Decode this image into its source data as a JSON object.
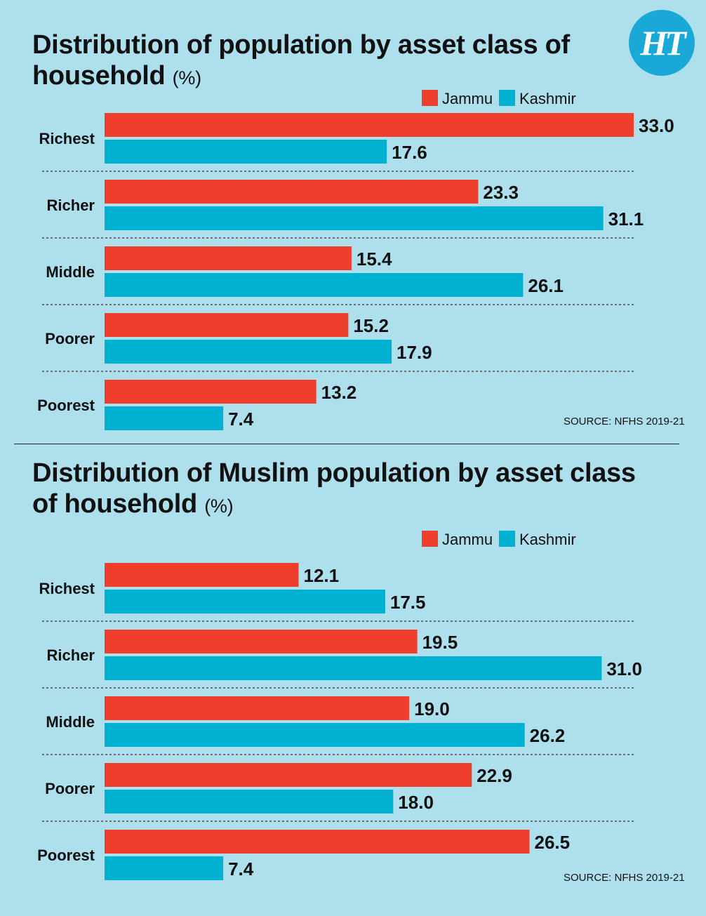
{
  "brand": {
    "logo_text": "HT",
    "logo_color": "#1aa9d6"
  },
  "colors": {
    "jammu": "#ef3e2b",
    "kashmir": "#00b1d2",
    "background": "#aedfec"
  },
  "chart_data": [
    {
      "type": "bar",
      "orientation": "horizontal",
      "title": "Distribution of population by asset class of household",
      "unit": "(%)",
      "categories": [
        "Richest",
        "Richer",
        "Middle",
        "Poorer",
        "Poorest"
      ],
      "series": [
        {
          "name": "Jammu",
          "values": [
            33.0,
            23.3,
            15.4,
            15.2,
            13.2
          ]
        },
        {
          "name": "Kashmir",
          "values": [
            17.6,
            31.1,
            26.1,
            17.9,
            7.4
          ]
        }
      ],
      "xlim": [
        0,
        33.0
      ],
      "legend_position": "top-right",
      "grid": false,
      "source": "SOURCE: NFHS 2019-21"
    },
    {
      "type": "bar",
      "orientation": "horizontal",
      "title": "Distribution of Muslim population by asset class of household",
      "unit": "(%)",
      "categories": [
        "Richest",
        "Richer",
        "Middle",
        "Poorer",
        "Poorest"
      ],
      "series": [
        {
          "name": "Jammu",
          "values": [
            12.1,
            19.5,
            19.0,
            22.9,
            26.5
          ]
        },
        {
          "name": "Kashmir",
          "values": [
            17.5,
            31.0,
            26.2,
            18.0,
            7.4
          ]
        }
      ],
      "xlim": [
        0,
        33.0
      ],
      "legend_position": "top-right",
      "grid": false,
      "source": "SOURCE: NFHS 2019-21"
    }
  ]
}
